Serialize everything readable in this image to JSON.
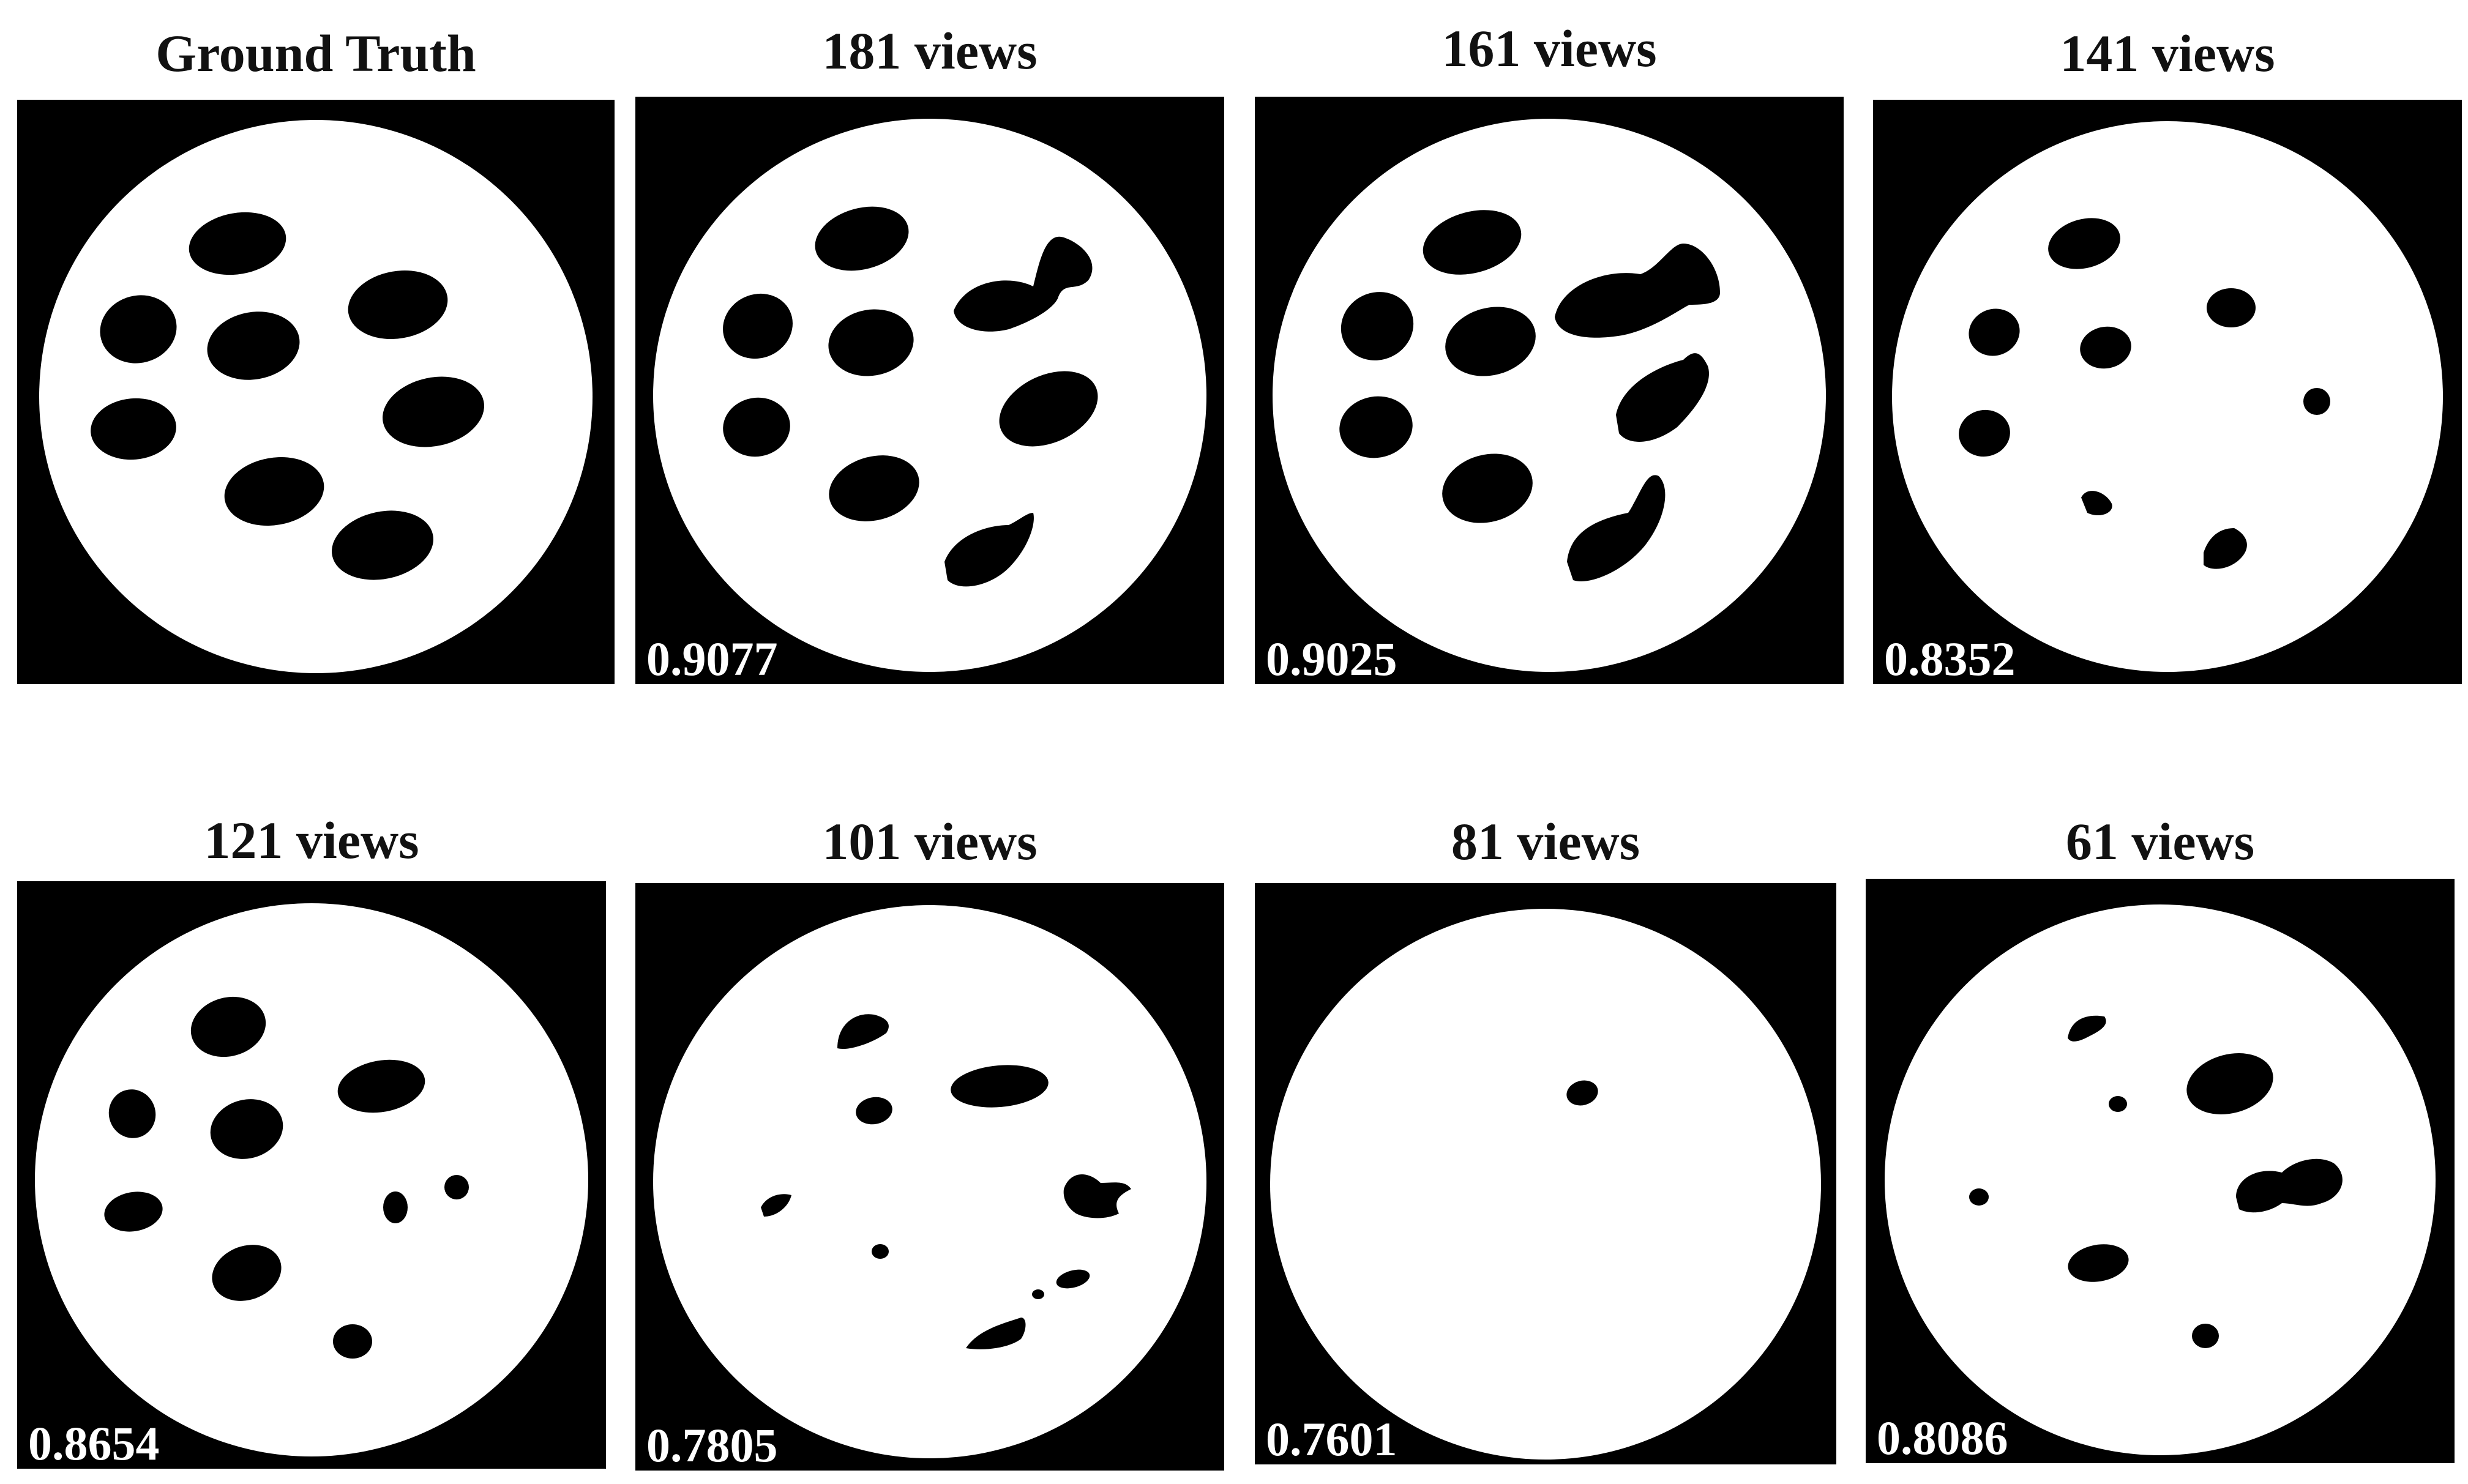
{
  "figure": {
    "panels": [
      {
        "title": "Ground Truth",
        "score": ""
      },
      {
        "title": "181 views",
        "score": "0.9077"
      },
      {
        "title": "161 views",
        "score": "0.9025"
      },
      {
        "title": "141 views",
        "score": "0.8352"
      },
      {
        "title": "121 views",
        "score": "0.8654"
      },
      {
        "title": "101 views",
        "score": "0.7805"
      },
      {
        "title": "81 views",
        "score": "0.7601"
      },
      {
        "title": "61 views",
        "score": "0.8086"
      }
    ]
  }
}
